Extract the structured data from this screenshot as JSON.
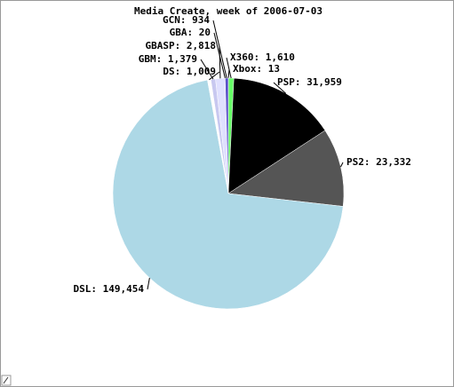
{
  "chart_data": {
    "type": "pie",
    "title": "Media Create, week of 2006-07-03",
    "categories": [
      "Xbox",
      "X360",
      "PSP",
      "PS2",
      "DSL",
      "DS",
      "GBM",
      "GBASP",
      "GBA",
      "GCN"
    ],
    "values": [
      13,
      1610,
      31959,
      23332,
      149454,
      1009,
      1379,
      2818,
      20,
      934
    ],
    "value_labels": [
      "13",
      "1,610",
      "31,959",
      "23,332",
      "149,454",
      "1,009",
      "1,379",
      "2,818",
      "20",
      "934"
    ],
    "colors": [
      "#ffffff",
      "#66ff66",
      "#000000",
      "#555555",
      "#add8e6",
      "#ffffff",
      "#c8c8f0",
      "#e0e0ff",
      "#9090e0",
      "#5a50c8"
    ]
  }
}
